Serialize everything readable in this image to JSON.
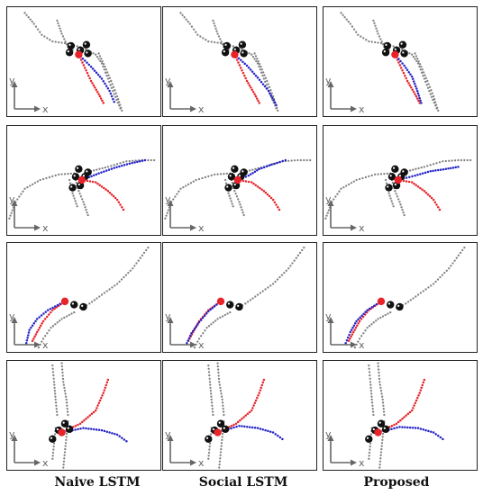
{
  "column_labels": [
    "Naive LSTM",
    "Social LSTM",
    "Proposed"
  ],
  "axis_labels": {
    "x": "x",
    "y": "y"
  },
  "colors": {
    "observed": "#808080",
    "ground_truth": "#e8232a",
    "prediction": "#2424c8",
    "pedestrian": "#111111",
    "target": "#e8232a",
    "axes": "#666666"
  },
  "scenes": [
    {
      "observed": [
        [
          [
            0.12,
            0.06
          ],
          [
            0.18,
            0.16
          ],
          [
            0.23,
            0.26
          ],
          [
            0.3,
            0.32
          ],
          [
            0.4,
            0.34
          ],
          [
            0.5,
            0.38
          ],
          [
            0.58,
            0.44
          ],
          [
            0.62,
            0.52
          ],
          [
            0.66,
            0.66
          ],
          [
            0.7,
            0.8
          ],
          [
            0.74,
            0.93
          ]
        ],
        [
          [
            0.33,
            0.13
          ],
          [
            0.36,
            0.25
          ],
          [
            0.4,
            0.37
          ],
          [
            0.43,
            0.4
          ]
        ],
        [
          [
            0.6,
            0.43
          ],
          [
            0.64,
            0.55
          ],
          [
            0.68,
            0.68
          ],
          [
            0.72,
            0.82
          ],
          [
            0.75,
            0.95
          ]
        ]
      ],
      "agents": [
        [
          0.42,
          0.36
        ],
        [
          0.52,
          0.35
        ],
        [
          0.48,
          0.4
        ],
        [
          0.41,
          0.42
        ],
        [
          0.53,
          0.43
        ]
      ],
      "target": [
        0.47,
        0.44
      ],
      "ground_truth": [
        [
          [
            0.47,
            0.44
          ],
          [
            0.51,
            0.56
          ],
          [
            0.55,
            0.68
          ],
          [
            0.6,
            0.8
          ],
          [
            0.63,
            0.88
          ]
        ]
      ],
      "prediction": {
        "Naive LSTM": [
          [
            [
              0.47,
              0.44
            ],
            [
              0.55,
              0.55
            ],
            [
              0.62,
              0.66
            ],
            [
              0.67,
              0.77
            ],
            [
              0.7,
              0.87
            ]
          ]
        ],
        "Social LSTM": [
          [
            [
              0.47,
              0.44
            ],
            [
              0.55,
              0.54
            ],
            [
              0.62,
              0.65
            ],
            [
              0.69,
              0.77
            ],
            [
              0.74,
              0.9
            ]
          ]
        ],
        "Proposed": [
          [
            [
              0.47,
              0.44
            ],
            [
              0.53,
              0.54
            ],
            [
              0.58,
              0.64
            ],
            [
              0.61,
              0.75
            ],
            [
              0.64,
              0.88
            ]
          ]
        ]
      }
    },
    {
      "observed": [
        [
          [
            0.02,
            0.85
          ],
          [
            0.06,
            0.7
          ],
          [
            0.12,
            0.58
          ],
          [
            0.22,
            0.5
          ],
          [
            0.34,
            0.45
          ],
          [
            0.44,
            0.44
          ]
        ],
        [
          [
            0.45,
            0.5
          ],
          [
            0.47,
            0.6
          ],
          [
            0.5,
            0.7
          ],
          [
            0.53,
            0.82
          ]
        ],
        [
          [
            0.41,
            0.5
          ],
          [
            0.43,
            0.62
          ],
          [
            0.46,
            0.74
          ]
        ],
        [
          [
            0.55,
            0.42
          ],
          [
            0.66,
            0.38
          ],
          [
            0.78,
            0.33
          ],
          [
            0.88,
            0.32
          ],
          [
            0.96,
            0.32
          ]
        ]
      ],
      "agents": [
        [
          0.47,
          0.4
        ],
        [
          0.53,
          0.43
        ],
        [
          0.45,
          0.47
        ],
        [
          0.51,
          0.47
        ],
        [
          0.48,
          0.55
        ],
        [
          0.43,
          0.57
        ]
      ],
      "target": [
        0.49,
        0.5
      ],
      "ground_truth": [
        [
          [
            0.49,
            0.5
          ],
          [
            0.58,
            0.52
          ],
          [
            0.66,
            0.6
          ],
          [
            0.72,
            0.68
          ],
          [
            0.76,
            0.77
          ]
        ]
      ],
      "prediction": {
        "Naive LSTM": [
          [
            [
              0.49,
              0.5
            ],
            [
              0.6,
              0.44
            ],
            [
              0.7,
              0.39
            ],
            [
              0.8,
              0.35
            ],
            [
              0.9,
              0.32
            ]
          ]
        ],
        "Social LSTM": [
          [
            [
              0.49,
              0.5
            ],
            [
              0.56,
              0.46
            ],
            [
              0.63,
              0.4
            ],
            [
              0.71,
              0.36
            ],
            [
              0.8,
              0.32
            ]
          ]
        ],
        "Proposed": [
          [
            [
              0.49,
              0.5
            ],
            [
              0.6,
              0.46
            ],
            [
              0.7,
              0.42
            ],
            [
              0.8,
              0.4
            ],
            [
              0.88,
              0.38
            ]
          ]
        ]
      }
    },
    {
      "observed": [
        [
          [
            0.92,
            0.05
          ],
          [
            0.82,
            0.24
          ],
          [
            0.72,
            0.38
          ],
          [
            0.62,
            0.48
          ],
          [
            0.54,
            0.56
          ],
          [
            0.48,
            0.6
          ]
        ],
        [
          [
            0.44,
            0.64
          ],
          [
            0.36,
            0.7
          ],
          [
            0.29,
            0.78
          ],
          [
            0.24,
            0.88
          ],
          [
            0.21,
            0.96
          ]
        ]
      ],
      "agents": [
        [
          0.44,
          0.57
        ],
        [
          0.5,
          0.59
        ]
      ],
      "target": [
        0.38,
        0.54
      ],
      "ground_truth": [
        [
          [
            0.38,
            0.54
          ],
          [
            0.3,
            0.62
          ],
          [
            0.24,
            0.72
          ],
          [
            0.2,
            0.82
          ],
          [
            0.17,
            0.9
          ]
        ]
      ],
      "prediction": {
        "Naive LSTM": [
          [
            [
              0.38,
              0.54
            ],
            [
              0.27,
              0.62
            ],
            [
              0.2,
              0.7
            ],
            [
              0.15,
              0.8
            ],
            [
              0.13,
              0.92
            ]
          ]
        ],
        "Social LSTM": [
          [
            [
              0.38,
              0.54
            ],
            [
              0.3,
              0.63
            ],
            [
              0.24,
              0.73
            ],
            [
              0.19,
              0.83
            ],
            [
              0.16,
              0.92
            ]
          ]
        ],
        "Proposed": [
          [
            [
              0.38,
              0.54
            ],
            [
              0.29,
              0.62
            ],
            [
              0.22,
              0.72
            ],
            [
              0.18,
              0.82
            ],
            [
              0.15,
              0.92
            ]
          ]
        ]
      }
    },
    {
      "observed": [
        [
          [
            0.36,
            0.03
          ],
          [
            0.37,
            0.2
          ],
          [
            0.39,
            0.36
          ],
          [
            0.4,
            0.5
          ]
        ],
        [
          [
            0.4,
            0.56
          ],
          [
            0.39,
            0.7
          ],
          [
            0.38,
            0.84
          ],
          [
            0.37,
            0.98
          ]
        ],
        [
          [
            0.3,
            0.05
          ],
          [
            0.31,
            0.2
          ],
          [
            0.32,
            0.36
          ],
          [
            0.33,
            0.5
          ]
        ],
        [
          [
            0.32,
            0.62
          ],
          [
            0.31,
            0.76
          ],
          [
            0.3,
            0.9
          ]
        ]
      ],
      "agents": [
        [
          0.38,
          0.58
        ],
        [
          0.41,
          0.63
        ],
        [
          0.34,
          0.64
        ],
        [
          0.3,
          0.72
        ]
      ],
      "target": [
        0.36,
        0.66
      ],
      "ground_truth": [
        [
          [
            0.36,
            0.66
          ],
          [
            0.48,
            0.58
          ],
          [
            0.58,
            0.46
          ],
          [
            0.63,
            0.3
          ],
          [
            0.66,
            0.18
          ]
        ]
      ],
      "prediction": {
        "Naive LSTM": [
          [
            [
              0.36,
              0.66
            ],
            [
              0.5,
              0.62
            ],
            [
              0.62,
              0.64
            ],
            [
              0.72,
              0.68
            ],
            [
              0.78,
              0.74
            ]
          ]
        ],
        "Social LSTM": [
          [
            [
              0.36,
              0.66
            ],
            [
              0.5,
              0.6
            ],
            [
              0.62,
              0.62
            ],
            [
              0.72,
              0.66
            ],
            [
              0.78,
              0.72
            ]
          ]
        ],
        "Proposed": [
          [
            [
              0.36,
              0.66
            ],
            [
              0.5,
              0.61
            ],
            [
              0.62,
              0.62
            ],
            [
              0.72,
              0.66
            ],
            [
              0.78,
              0.72
            ]
          ]
        ]
      }
    }
  ]
}
